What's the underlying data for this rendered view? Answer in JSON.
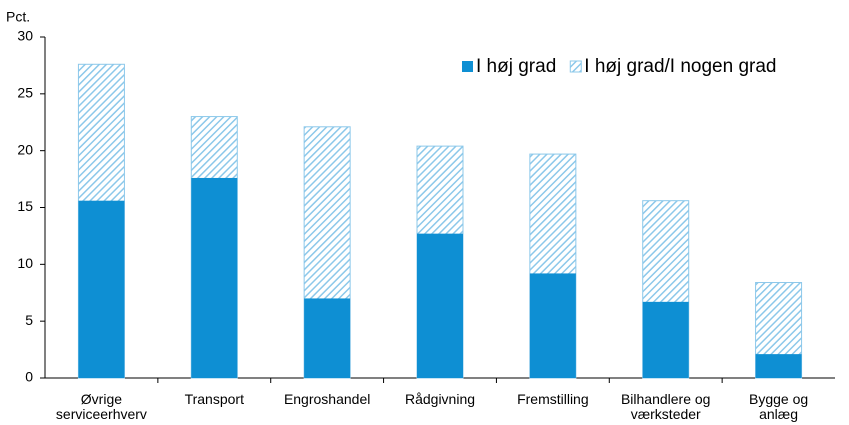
{
  "chart_data": {
    "type": "bar",
    "y_label": "Pct.",
    "categories": [
      "Øvrige\nserviceerhverv",
      "Transport",
      "Engroshandel",
      "Rådgivning",
      "Fremstilling",
      "Bilhandlere og\nværksteder",
      "Bygge og\nanlæg"
    ],
    "series": [
      {
        "name": "I høj grad",
        "color": "#0e8fd3",
        "values": [
          15.6,
          17.6,
          7.0,
          12.7,
          9.2,
          6.7,
          2.1
        ]
      },
      {
        "name": "I høj grad/I nogen grad",
        "color": "#8cc8ea",
        "values": [
          27.6,
          23.0,
          22.1,
          20.4,
          19.7,
          15.6,
          8.4
        ]
      }
    ],
    "ylim": [
      0,
      30
    ],
    "yticks": [
      0,
      5,
      10,
      15,
      20,
      25,
      30
    ],
    "grid": false
  }
}
